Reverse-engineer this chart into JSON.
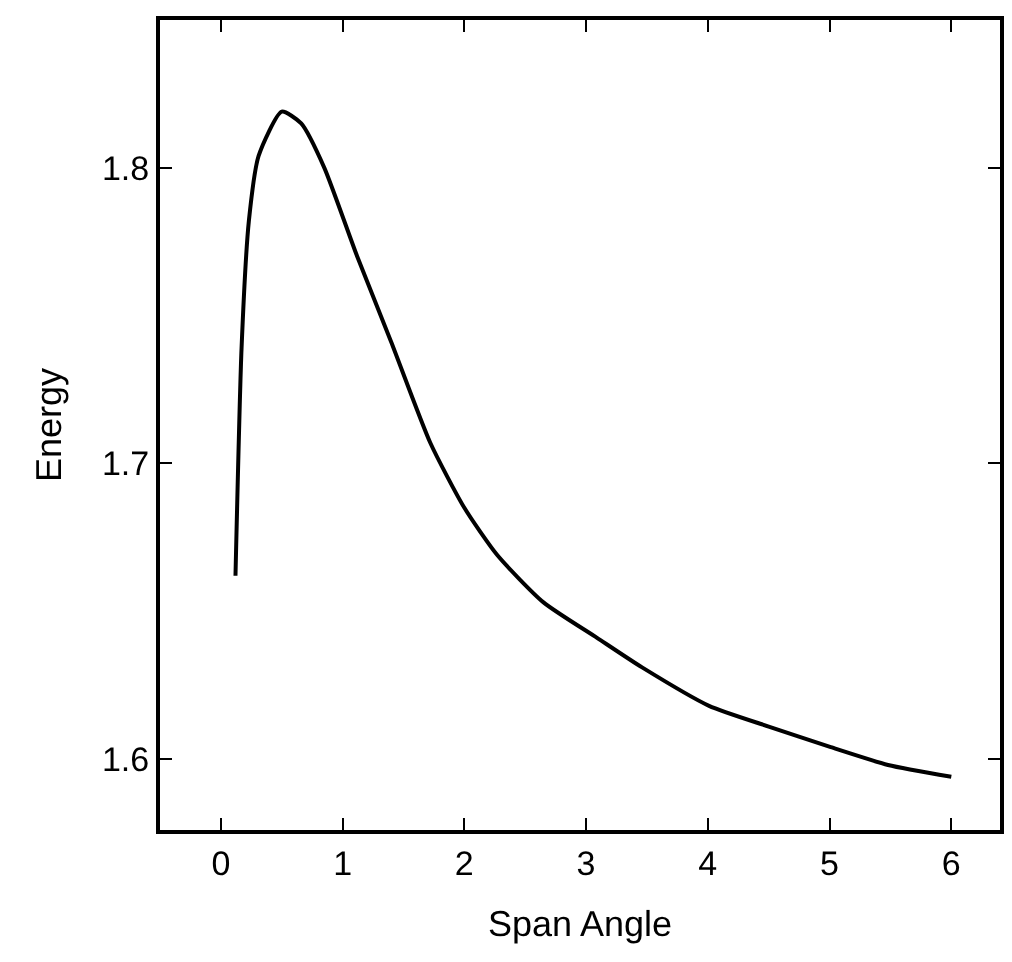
{
  "chart_data": {
    "type": "line",
    "xlabel": "Span Angle",
    "ylabel": "Energy",
    "xlim": [
      -0.5,
      6.4
    ],
    "ylim": [
      1.576,
      1.85
    ],
    "xticks": [
      0,
      1,
      2,
      3,
      4,
      5,
      6
    ],
    "yticks": [
      1.6,
      1.7,
      1.8
    ],
    "legend": false,
    "marker": "none",
    "line_style": "solid",
    "series": [
      {
        "color": "#000000",
        "x": [
          0.12,
          0.17,
          0.23,
          0.31,
          0.5,
          0.66,
          0.85,
          1.12,
          1.4,
          1.72,
          2.0,
          2.27,
          2.65,
          3.09,
          3.46,
          4.01,
          4.5,
          5.01,
          5.48,
          6.0
        ],
        "values": [
          1.662,
          1.739,
          1.782,
          1.804,
          1.819,
          1.815,
          1.8,
          1.77,
          1.741,
          1.707,
          1.685,
          1.669,
          1.653,
          1.641,
          1.631,
          1.618,
          1.611,
          1.604,
          1.598,
          1.594
        ]
      }
    ]
  }
}
